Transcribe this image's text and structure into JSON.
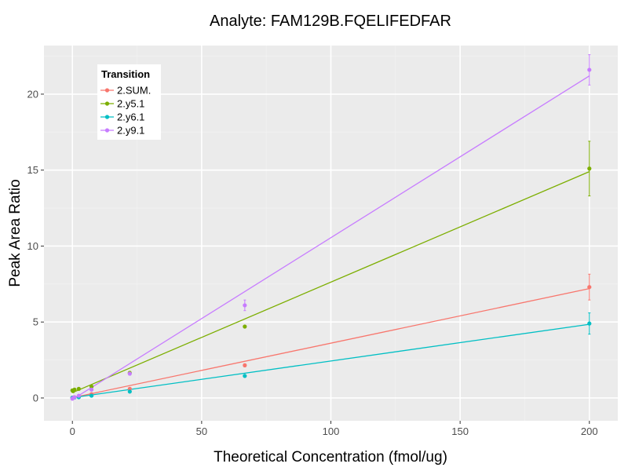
{
  "chart_data": {
    "type": "scatter",
    "title": "Analyte: FAM129B.FQELIFEDFAR",
    "xlabel": "Theoretical Concentration (fmol/ug)",
    "ylabel": "Peak Area Ratio",
    "xlim": [
      -11,
      211
    ],
    "ylim": [
      -1.5,
      23.2
    ],
    "xticks": [
      0,
      50,
      100,
      150,
      200
    ],
    "yticks": [
      0,
      5,
      10,
      15,
      20
    ],
    "grid": true,
    "legend": {
      "title": "Transition",
      "placement": "top-left"
    },
    "series": [
      {
        "name": "2.SUM.",
        "color": "#F8766D",
        "fit": [
          [
            0,
            0.02
          ],
          [
            200,
            7.2
          ]
        ],
        "points": [
          {
            "x": 0,
            "y": 0.02,
            "err": 0
          },
          {
            "x": 0.27,
            "y": 0.03,
            "err": 0
          },
          {
            "x": 0.82,
            "y": 0.05,
            "err": 0
          },
          {
            "x": 2.47,
            "y": 0.1,
            "err": 0
          },
          {
            "x": 7.4,
            "y": 0.25,
            "err": 0
          },
          {
            "x": 22.2,
            "y": 0.6,
            "err": 0
          },
          {
            "x": 66.7,
            "y": 2.15,
            "err": 0.1
          },
          {
            "x": 200,
            "y": 7.3,
            "err": 0.85
          }
        ]
      },
      {
        "name": "2.y5.1",
        "color": "#7CAE00",
        "fit": [
          [
            0,
            0.35
          ],
          [
            200,
            14.9
          ]
        ],
        "points": [
          {
            "x": 0,
            "y": 0.5,
            "err": 0
          },
          {
            "x": 0.27,
            "y": 0.45,
            "err": 0
          },
          {
            "x": 0.82,
            "y": 0.55,
            "err": 0
          },
          {
            "x": 2.47,
            "y": 0.6,
            "err": 0
          },
          {
            "x": 7.4,
            "y": 0.75,
            "err": 0
          },
          {
            "x": 22.2,
            "y": 1.65,
            "err": 0.1
          },
          {
            "x": 66.7,
            "y": 4.7,
            "err": 0
          },
          {
            "x": 200,
            "y": 15.1,
            "err": 1.8
          }
        ]
      },
      {
        "name": "2.y6.1",
        "color": "#00BFC4",
        "fit": [
          [
            0,
            0.02
          ],
          [
            200,
            4.85
          ]
        ],
        "points": [
          {
            "x": 0,
            "y": 0.02,
            "err": 0
          },
          {
            "x": 0.27,
            "y": 0.02,
            "err": 0
          },
          {
            "x": 0.82,
            "y": 0.03,
            "err": 0
          },
          {
            "x": 2.47,
            "y": 0.05,
            "err": 0
          },
          {
            "x": 7.4,
            "y": 0.15,
            "err": 0
          },
          {
            "x": 22.2,
            "y": 0.42,
            "err": 0
          },
          {
            "x": 66.7,
            "y": 1.45,
            "err": 0.05
          },
          {
            "x": 200,
            "y": 4.9,
            "err": 0.7
          }
        ]
      },
      {
        "name": "2.y9.1",
        "color": "#C77CFF",
        "fit": [
          [
            0,
            -0.1
          ],
          [
            200,
            21.2
          ]
        ],
        "points": [
          {
            "x": 0,
            "y": -0.05,
            "err": 0
          },
          {
            "x": 0.27,
            "y": 0.0,
            "err": 0
          },
          {
            "x": 0.82,
            "y": 0.05,
            "err": 0
          },
          {
            "x": 2.47,
            "y": 0.15,
            "err": 0
          },
          {
            "x": 7.4,
            "y": 0.55,
            "err": 0
          },
          {
            "x": 22.2,
            "y": 1.6,
            "err": 0.1
          },
          {
            "x": 66.7,
            "y": 6.1,
            "err": 0.35
          },
          {
            "x": 200,
            "y": 21.6,
            "err": 1.0
          }
        ]
      }
    ]
  }
}
